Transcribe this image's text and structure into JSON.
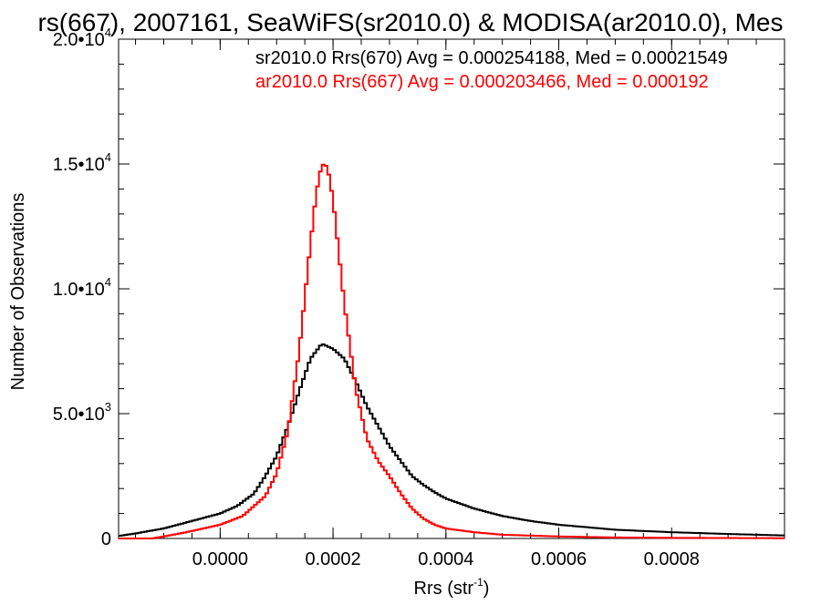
{
  "chart_data": {
    "type": "line",
    "title": "rs(667), 2007161, SeaWiFS(sr2010.0) & MODISA(ar2010.0), Mes",
    "xlabel": "Rrs (str",
    "xlabel_sup": "-1",
    "xlabel_close": ")",
    "ylabel": "Number of Observations",
    "xlim": [
      -0.00018,
      0.001
    ],
    "ylim": [
      0,
      20000
    ],
    "xticks": [
      {
        "value": 0.0,
        "label": "0.0000"
      },
      {
        "value": 0.0002,
        "label": "0.0002"
      },
      {
        "value": 0.0004,
        "label": "0.0004"
      },
      {
        "value": 0.0006,
        "label": "0.0006"
      },
      {
        "value": 0.0008,
        "label": "0.0008"
      }
    ],
    "yticks": [
      {
        "value": 0,
        "base": "0",
        "exp": ""
      },
      {
        "value": 5000,
        "base": "5.0•10",
        "exp": "3"
      },
      {
        "value": 10000,
        "base": "1.0•10",
        "exp": "4"
      },
      {
        "value": 15000,
        "base": "1.5•10",
        "exp": "4"
      },
      {
        "value": 20000,
        "base": "2.0•10",
        "exp": "4"
      }
    ],
    "legend_placement": "top-right",
    "colors": {
      "axis": "#000000",
      "sr": "#000000",
      "ar": "#ff0000"
    },
    "series": [
      {
        "name": "sr2010.0 Rrs(670) Avg = 0.000254188, Med = 0.00021549",
        "color": "#000000",
        "points": [
          [
            -0.00018,
            100
          ],
          [
            -0.00015,
            200
          ],
          [
            -0.0001,
            400
          ],
          [
            -5e-05,
            700
          ],
          [
            0.0,
            1000
          ],
          [
            3e-05,
            1300
          ],
          [
            6e-05,
            1800
          ],
          [
            8e-05,
            2500
          ],
          [
            0.0001,
            3300
          ],
          [
            0.00012,
            4500
          ],
          [
            0.00014,
            5900
          ],
          [
            0.00016,
            7200
          ],
          [
            0.00018,
            7800
          ],
          [
            0.0002,
            7600
          ],
          [
            0.00022,
            7200
          ],
          [
            0.00024,
            6300
          ],
          [
            0.00026,
            5300
          ],
          [
            0.00028,
            4500
          ],
          [
            0.0003,
            3700
          ],
          [
            0.00032,
            3100
          ],
          [
            0.00034,
            2500
          ],
          [
            0.00036,
            2150
          ],
          [
            0.00038,
            1850
          ],
          [
            0.0004,
            1600
          ],
          [
            0.00045,
            1200
          ],
          [
            0.0005,
            900
          ],
          [
            0.00055,
            700
          ],
          [
            0.0006,
            550
          ],
          [
            0.0007,
            350
          ],
          [
            0.0008,
            250
          ],
          [
            0.0009,
            180
          ],
          [
            0.001,
            120
          ]
        ]
      },
      {
        "name": "ar2010.0 Rrs(667) Avg = 0.000203466, Med = 0.000192",
        "color": "#ff0000",
        "points": [
          [
            -0.00018,
            0
          ],
          [
            -0.00012,
            0
          ],
          [
            -0.0001,
            80
          ],
          [
            -6e-05,
            250
          ],
          [
            -2e-05,
            450
          ],
          [
            0.0,
            550
          ],
          [
            4e-05,
            900
          ],
          [
            8e-05,
            1700
          ],
          [
            0.0001,
            2600
          ],
          [
            0.00012,
            4300
          ],
          [
            0.00014,
            7500
          ],
          [
            0.00016,
            11800
          ],
          [
            0.00017,
            13800
          ],
          [
            0.00018,
            15000
          ],
          [
            0.00019,
            14900
          ],
          [
            0.0002,
            13600
          ],
          [
            0.00021,
            11500
          ],
          [
            0.00022,
            9400
          ],
          [
            0.00024,
            6000
          ],
          [
            0.00026,
            4000
          ],
          [
            0.00028,
            3100
          ],
          [
            0.0003,
            2500
          ],
          [
            0.00032,
            1800
          ],
          [
            0.00034,
            1200
          ],
          [
            0.00036,
            800
          ],
          [
            0.00038,
            550
          ],
          [
            0.0004,
            400
          ],
          [
            0.00045,
            250
          ],
          [
            0.0005,
            150
          ],
          [
            0.0006,
            80
          ],
          [
            0.0007,
            40
          ],
          [
            0.0008,
            25
          ],
          [
            0.001,
            10
          ]
        ]
      }
    ]
  }
}
